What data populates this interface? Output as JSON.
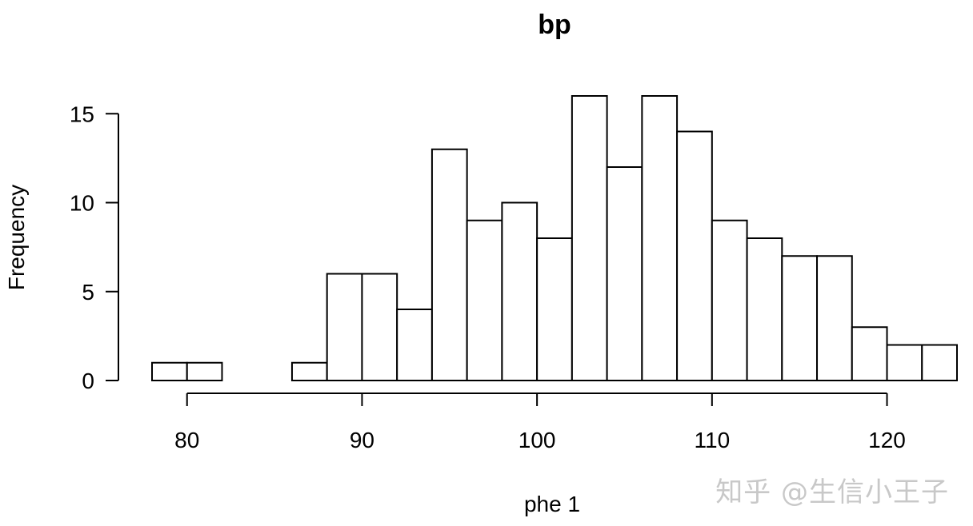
{
  "chart_data": {
    "type": "bar",
    "title": "bp",
    "xlabel": "phe 1",
    "ylabel": "Frequency",
    "bin_edges": [
      78,
      80,
      82,
      84,
      86,
      88,
      90,
      92,
      94,
      96,
      98,
      100,
      102,
      104,
      106,
      108,
      110,
      112,
      114,
      116,
      118,
      120,
      122,
      124
    ],
    "values": [
      1,
      1,
      0,
      0,
      1,
      6,
      6,
      4,
      13,
      9,
      10,
      8,
      16,
      12,
      16,
      14,
      9,
      8,
      7,
      7,
      3,
      2,
      2
    ],
    "xlim": [
      78,
      124
    ],
    "ylim": [
      0,
      16
    ],
    "x_ticks": [
      80,
      90,
      100,
      110,
      120
    ],
    "y_ticks": [
      0,
      5,
      10,
      15
    ],
    "grid": false,
    "legend": "none"
  },
  "watermark": "知乎 @生信小王子"
}
